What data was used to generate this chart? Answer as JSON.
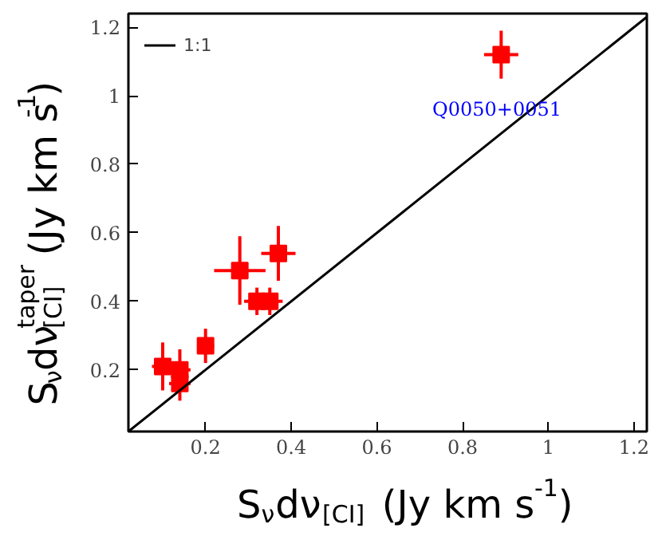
{
  "chart_data": {
    "type": "scatter",
    "xlabel": "S$_{ν}$dν$_{[CI]}$ (Jy km s$^{-1}$)",
    "ylabel": "S$_{ν}$dν$_{[CI]}$$^{taper}$ (Jy km s$^{-1}$)",
    "xlim": [
      0.02,
      1.23
    ],
    "ylim": [
      0.02,
      1.24
    ],
    "xticks": [
      0.2,
      0.4,
      0.6,
      0.8,
      1.0,
      1.2
    ],
    "yticks": [
      0.2,
      0.4,
      0.6,
      0.8,
      1.0,
      1.2
    ],
    "grid": false,
    "legend": "top left",
    "series": [
      {
        "marker": "square",
        "color": "#ff0000",
        "x": [
          0.1,
          0.14,
          0.14,
          0.2,
          0.28,
          0.32,
          0.35,
          0.37,
          0.89
        ],
        "values": [
          0.21,
          0.2,
          0.16,
          0.27,
          0.49,
          0.4,
          0.4,
          0.54,
          1.12
        ],
        "errors": [
          0.07,
          0.06,
          0.05,
          0.05,
          0.1,
          0.04,
          0.04,
          0.08,
          0.07
        ],
        "xerrors": [
          0.025,
          0.025,
          0.025,
          0.02,
          0.06,
          0.03,
          0.03,
          0.04,
          0.04
        ]
      },
      {
        "type": "line",
        "marker": "none",
        "name": "1:1",
        "color": "#000000",
        "line_style": "solid",
        "x": [
          0.02,
          1.23
        ],
        "values": [
          0.02,
          1.23
        ]
      }
    ],
    "annotations": [
      "Q0050+0051"
    ]
  }
}
